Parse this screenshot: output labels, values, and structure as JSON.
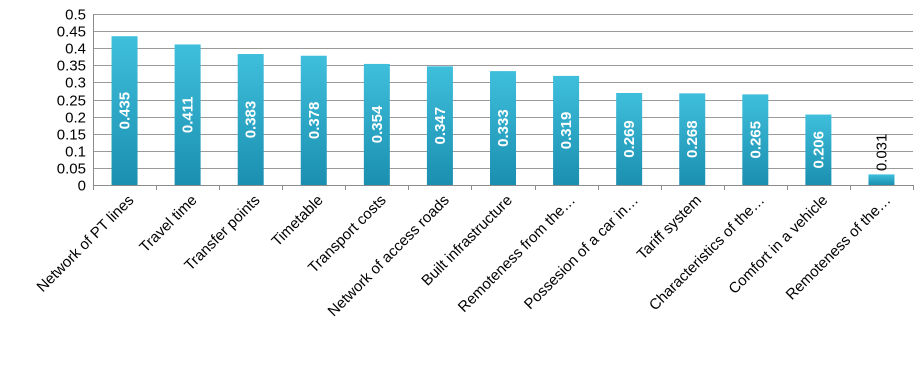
{
  "chart_data": {
    "type": "bar",
    "categories": [
      "Network of PT lines",
      "Travel time",
      "Transfer points",
      "Timetable",
      "Transport costs",
      "Network of access roads",
      "Built infrastructure",
      "Remoteness from the…",
      "Possesion of a car in…",
      "Tariff system",
      "Characteristics of the…",
      "Comfort in a vehicle",
      "Remoteness of the…"
    ],
    "values": [
      0.435,
      0.411,
      0.383,
      0.378,
      0.354,
      0.347,
      0.333,
      0.319,
      0.269,
      0.268,
      0.265,
      0.206,
      0.031
    ],
    "value_labels": [
      "0.435",
      "0.411",
      "0.383",
      "0.378",
      "0.354",
      "0.347",
      "0.333",
      "0.319",
      "0.269",
      "0.268",
      "0.265",
      "0.206",
      "0.031"
    ],
    "y_ticks": [
      0,
      0.05,
      0.1,
      0.15,
      0.2,
      0.25,
      0.3,
      0.35,
      0.4,
      0.45,
      0.5
    ],
    "y_tick_labels": [
      "0",
      "0.05",
      "0.1",
      "0.15",
      "0.2",
      "0.25",
      "0.3",
      "0.35",
      "0.4",
      "0.45",
      "0.5"
    ],
    "ylim": [
      0,
      0.5
    ],
    "title": "",
    "xlabel": "",
    "ylabel": "",
    "grid": true,
    "legend": "none",
    "colors": {
      "bar_top": "#3fbfdc",
      "bar_bottom": "#1b8fb0",
      "grid": "#9a9a9a",
      "axis": "#8c8c8c"
    }
  }
}
